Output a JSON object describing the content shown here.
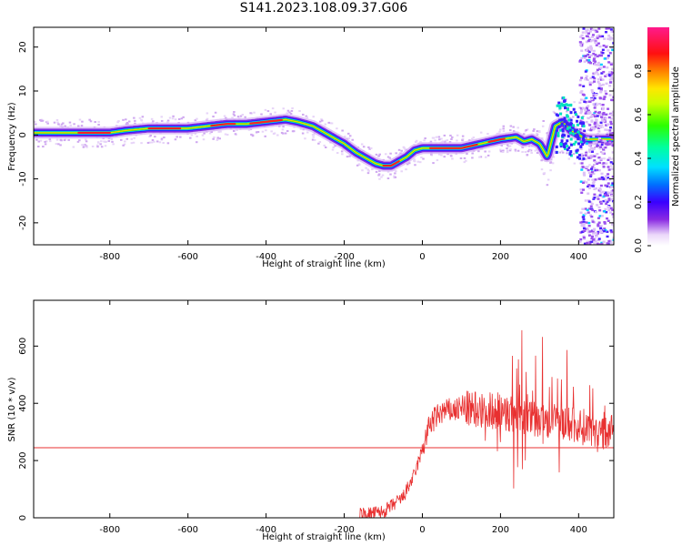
{
  "title": "S141.2023.108.09.37.G06",
  "colors": {
    "signal": "#e83030",
    "background": "#ffffff"
  },
  "chart_data": [
    {
      "type": "heatmap",
      "xlabel": "Height of straight line (km)",
      "ylabel": "Frequency (Hz)",
      "xlim": [
        -995,
        490
      ],
      "ylim": [
        -25,
        24.5
      ],
      "xticks": [
        -800,
        -600,
        -400,
        -200,
        0,
        200,
        400
      ],
      "yticks": [
        -20,
        -10,
        0,
        10,
        20
      ],
      "colorbar": {
        "label": "Normalized spectral amplitude",
        "range": [
          0,
          1
        ],
        "ticks": [
          "0.0",
          "0.2",
          "0.4",
          "0.6",
          "0.8"
        ]
      },
      "ridge": {
        "x": [
          -995,
          -900,
          -800,
          -760,
          -700,
          -600,
          -500,
          -450,
          -400,
          -350,
          -320,
          -280,
          -250,
          -200,
          -170,
          -150,
          -120,
          -100,
          -80,
          -60,
          -40,
          -20,
          0,
          20,
          50,
          100,
          150,
          200,
          240,
          260,
          280,
          300,
          320,
          340,
          360,
          380,
          400,
          420
        ],
        "y": [
          0.5,
          0.5,
          0.5,
          1,
          1.5,
          1.5,
          2.5,
          2.5,
          3,
          3.5,
          3,
          2,
          0.5,
          -2,
          -4,
          -5,
          -6.5,
          -7,
          -7,
          -6,
          -5,
          -3.5,
          -3,
          -3,
          -3,
          -3,
          -2,
          -1,
          -0.5,
          -1.5,
          -1,
          -2,
          -5,
          2,
          3,
          1,
          0,
          -1
        ]
      }
    },
    {
      "type": "line",
      "xlabel": "Height of straight line (km)",
      "ylabel": "SNR (10 * v/v)",
      "xlim": [
        -995,
        490
      ],
      "ylim": [
        0,
        760
      ],
      "xticks": [
        -800,
        -600,
        -400,
        -200,
        0,
        200,
        400
      ],
      "yticks": [
        0,
        200,
        400,
        600
      ],
      "reference_line": 245,
      "envelope": {
        "x": [
          -160,
          -100,
          -50,
          -20,
          0,
          20,
          50,
          100,
          150,
          200,
          250,
          300,
          350,
          400,
          450,
          490
        ],
        "y": [
          10,
          20,
          70,
          150,
          240,
          330,
          370,
          380,
          380,
          370,
          360,
          340,
          330,
          320,
          310,
          300
        ]
      }
    }
  ]
}
